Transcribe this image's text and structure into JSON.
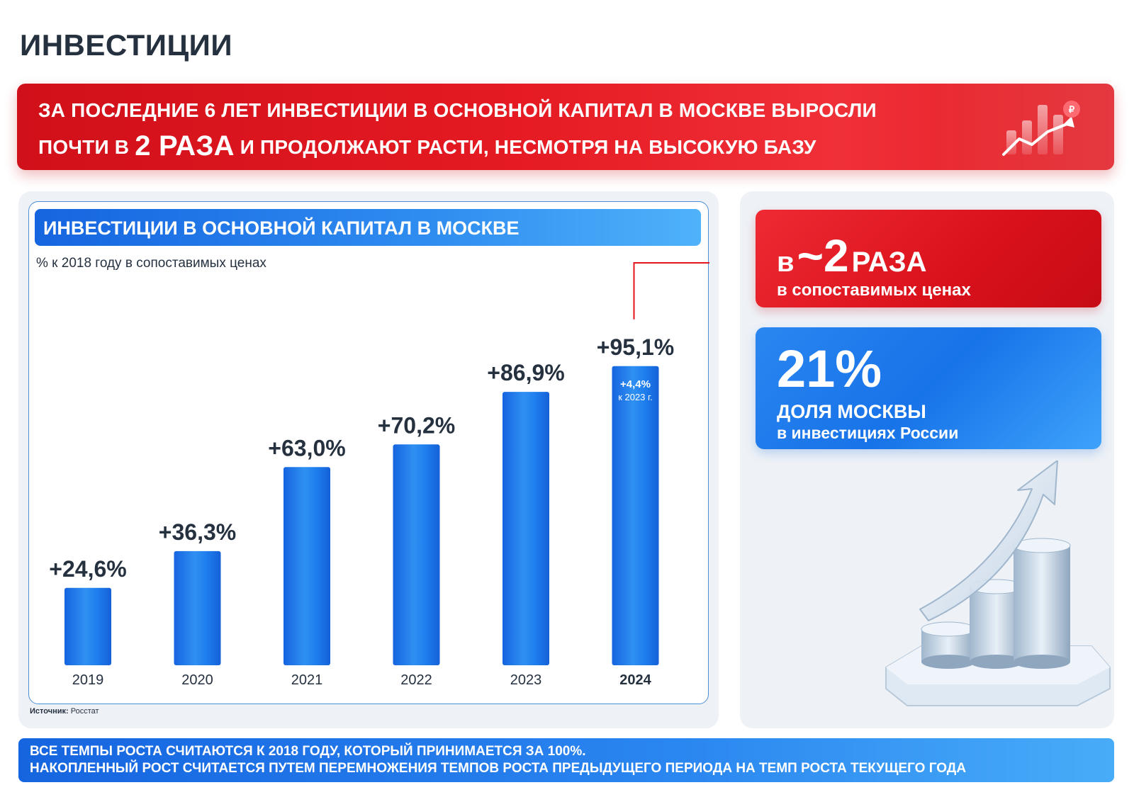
{
  "page_title": "ИНВЕСТИЦИИ",
  "banner": {
    "line1": "ЗА ПОСЛЕДНИЕ 6 ЛЕТ ИНВЕСТИЦИИ В ОСНОВНОЙ КАПИТАЛ В МОСКВЕ ВЫРОСЛИ",
    "line2_pre": "ПОЧТИ В ",
    "line2_big": "2 РАЗА",
    "line2_post": " И ПРОДОЛЖАЮТ РАСТИ, НЕСМОТРЯ НА ВЫСОКУЮ БАЗУ",
    "icon": "growth-chart-icon"
  },
  "chart_data": {
    "type": "bar",
    "title": "ИНВЕСТИЦИИ В ОСНОВНОЙ КАПИТАЛ В МОСКВЕ",
    "subtitle": "% к 2018 году в сопоставимых ценах",
    "categories": [
      "2019",
      "2020",
      "2021",
      "2022",
      "2023",
      "2024"
    ],
    "values": [
      24.6,
      36.3,
      63.0,
      70.2,
      86.9,
      95.1
    ],
    "data_labels": [
      "+24,6%",
      "+36,3%",
      "+63,0%",
      "+70,2%",
      "+86,9%",
      "+95,1%"
    ],
    "highlight_category": "2024",
    "inner_annotation": {
      "category": "2024",
      "value": "+4,4%",
      "note": "к 2023 г."
    },
    "ylim": [
      0,
      100
    ],
    "grid": false,
    "bar_color": "#1e7eee",
    "source_label": "Источник:",
    "source": "Росстат"
  },
  "right": {
    "card_red": {
      "prefix": "в",
      "approx": "~2",
      "suffix": "РАЗА",
      "caption": "в сопоставимых ценах",
      "color": "#e3161f"
    },
    "card_blue": {
      "value": "21%",
      "line1": "ДОЛЯ МОСКВЫ",
      "line2": "в инвестициях России",
      "color": "#1f7cee"
    },
    "illustration": "coins-arrow-icon"
  },
  "footer": {
    "line1": "ВСЕ ТЕМПЫ РОСТА СЧИТАЮТСЯ К 2018 ГОДУ, КОТОРЫЙ ПРИНИМАЕТСЯ ЗА 100%.",
    "line2": "НАКОПЛЕННЫЙ РОСТ СЧИТАЕТСЯ ПУТЕМ ПЕРЕМНОЖЕНИЯ ТЕМПОВ РОСТА ПРЕДЫДУЩЕГО ПЕРИОДА НА ТЕМП РОСТА ТЕКУЩЕГО ГОДА"
  }
}
